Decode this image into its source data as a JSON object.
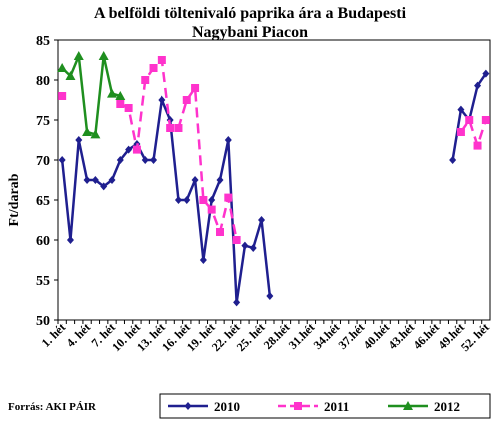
{
  "chart_data": {
    "type": "line",
    "title": "A belföldi töltenivaló paprika ára a Budapesti Nagybani Piacon",
    "y_label": "Ft/darab",
    "source": "Forrás: AKI PÁIR",
    "categories": [
      "1. hét",
      null,
      null,
      "4. hét",
      null,
      null,
      "7. hét",
      null,
      null,
      "10. hét",
      null,
      null,
      "13. hét",
      null,
      null,
      "16. hét",
      null,
      null,
      "19. hét",
      null,
      null,
      "22. hét",
      null,
      null,
      "25. hét",
      null,
      null,
      "28.hét",
      null,
      null,
      "31.hét",
      null,
      null,
      "34.hét",
      null,
      null,
      "37.hét",
      null,
      null,
      "40.hét",
      null,
      null,
      "43.hét",
      null,
      null,
      "46.hét",
      null,
      null,
      "49.hét",
      null,
      null,
      "52. hét"
    ],
    "ylim": [
      50,
      85
    ],
    "yticks": [
      50,
      55,
      60,
      65,
      70,
      75,
      80,
      85
    ],
    "series": [
      {
        "name": "2010",
        "color": "#1f1f8f",
        "marker": "diamond",
        "dashed": false,
        "values": [
          70,
          60,
          72.5,
          67.5,
          67.5,
          66.7,
          67.5,
          70,
          71.3,
          72,
          70,
          70,
          77.5,
          75,
          65,
          65,
          67.5,
          57.5,
          65,
          67.5,
          72.5,
          52.2,
          59.3,
          59,
          62.5,
          53,
          null,
          null,
          null,
          null,
          null,
          null,
          null,
          null,
          null,
          null,
          null,
          null,
          null,
          null,
          null,
          null,
          null,
          null,
          null,
          null,
          null,
          70,
          76.3,
          75,
          79.3,
          80.8
        ]
      },
      {
        "name": "2011",
        "color": "#ff33cc",
        "marker": "square",
        "dashed": true,
        "values": [
          78,
          null,
          null,
          null,
          null,
          null,
          null,
          77,
          76.5,
          71.3,
          80,
          81.5,
          82.5,
          74,
          74,
          77.5,
          79,
          65,
          63.8,
          61,
          65.3,
          60,
          null,
          null,
          null,
          null,
          null,
          null,
          null,
          null,
          null,
          null,
          null,
          null,
          null,
          null,
          null,
          null,
          null,
          null,
          null,
          null,
          null,
          null,
          null,
          null,
          null,
          null,
          73.5,
          75,
          71.8,
          75
        ]
      },
      {
        "name": "2012",
        "color": "#1f8f1f",
        "marker": "triangle",
        "dashed": false,
        "values": [
          81.5,
          80.5,
          83,
          73.5,
          73.2,
          83,
          78.3,
          78,
          null,
          null,
          null,
          null,
          null,
          null,
          null,
          null,
          null,
          null,
          null,
          null,
          null,
          null,
          null,
          null,
          null,
          null,
          null,
          null,
          null,
          null,
          null,
          null,
          null,
          null,
          null,
          null,
          null,
          null,
          null,
          null,
          null,
          null,
          null,
          null,
          null,
          null,
          null,
          null,
          null,
          null,
          null,
          null
        ]
      }
    ]
  }
}
